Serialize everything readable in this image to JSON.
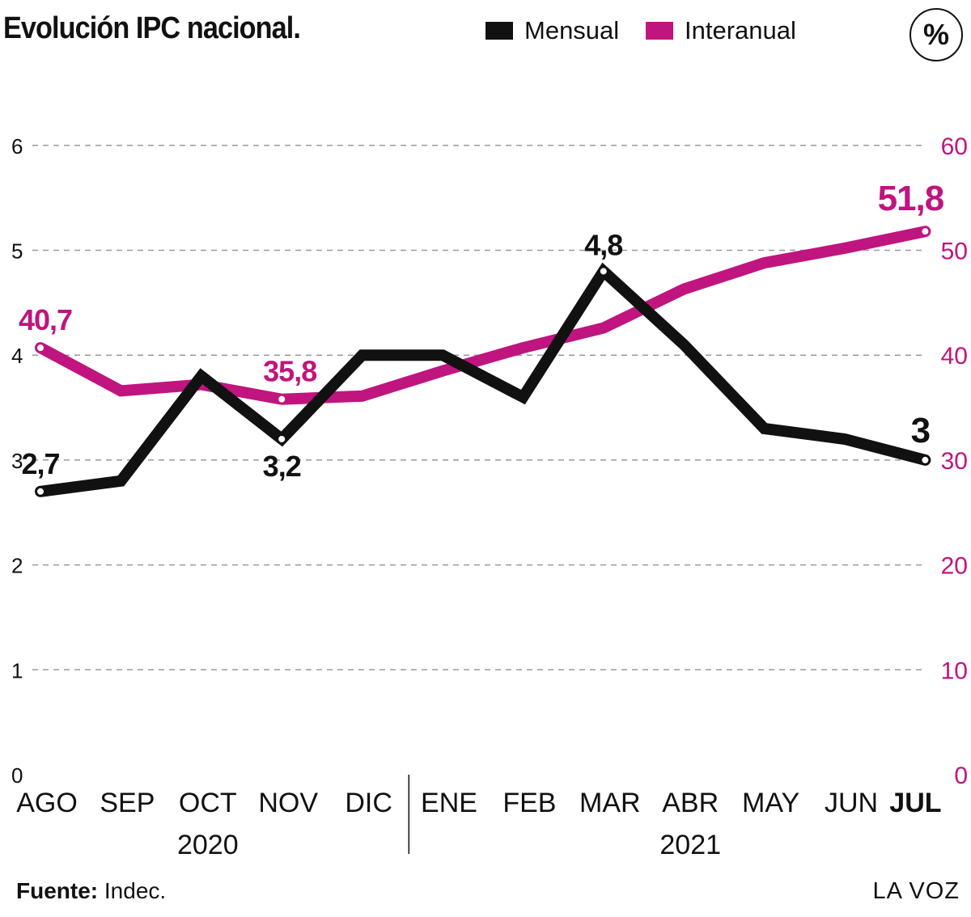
{
  "header": {
    "title": "Evolución IPC nacional.",
    "unit_badge": "%"
  },
  "legend": [
    {
      "label": "Mensual",
      "color": "#111111"
    },
    {
      "label": "Interanual",
      "color": "#c0147f"
    }
  ],
  "footer": {
    "source_label": "Fuente:",
    "source_value": " Indec.",
    "brand": "LA VOZ"
  },
  "chart_data": {
    "type": "line",
    "title": "Evolución IPC nacional.",
    "categories": [
      "AGO",
      "SEP",
      "OCT",
      "NOV",
      "DIC",
      "ENE",
      "FEB",
      "MAR",
      "ABR",
      "MAY",
      "JUN",
      "JUL"
    ],
    "year_groups": [
      {
        "label": "2020",
        "from": 0,
        "to": 4
      },
      {
        "label": "2021",
        "from": 5,
        "to": 11
      }
    ],
    "series": [
      {
        "name": "Mensual",
        "axis": "left",
        "color": "#111111",
        "values": [
          2.7,
          2.8,
          3.8,
          3.2,
          4.0,
          4.0,
          3.6,
          4.8,
          4.1,
          3.3,
          3.2,
          3.0
        ]
      },
      {
        "name": "Interanual",
        "axis": "right",
        "color": "#c0147f",
        "values": [
          40.7,
          36.6,
          37.2,
          35.8,
          36.1,
          38.5,
          40.7,
          42.6,
          46.3,
          48.8,
          50.2,
          51.8
        ]
      }
    ],
    "y_left": {
      "range": [
        0,
        6
      ],
      "ticks": [
        "0",
        "1",
        "2",
        "3",
        "4",
        "5",
        "6"
      ]
    },
    "y_right": {
      "range": [
        0,
        60
      ],
      "ticks": [
        "0",
        "10",
        "20",
        "30",
        "40",
        "50",
        "60"
      ]
    },
    "annotations": [
      {
        "series": "Mensual",
        "index": 0,
        "text": "2,7"
      },
      {
        "series": "Mensual",
        "index": 3,
        "text": "3,2"
      },
      {
        "series": "Mensual",
        "index": 7,
        "text": "4,8"
      },
      {
        "series": "Mensual",
        "index": 11,
        "text": "3"
      },
      {
        "series": "Interanual",
        "index": 0,
        "text": "40,7"
      },
      {
        "series": "Interanual",
        "index": 3,
        "text": "35,8"
      },
      {
        "series": "Interanual",
        "index": 11,
        "text": "51,8"
      }
    ],
    "highlight_category": "JUL",
    "grid": true,
    "legend_position": "top"
  }
}
